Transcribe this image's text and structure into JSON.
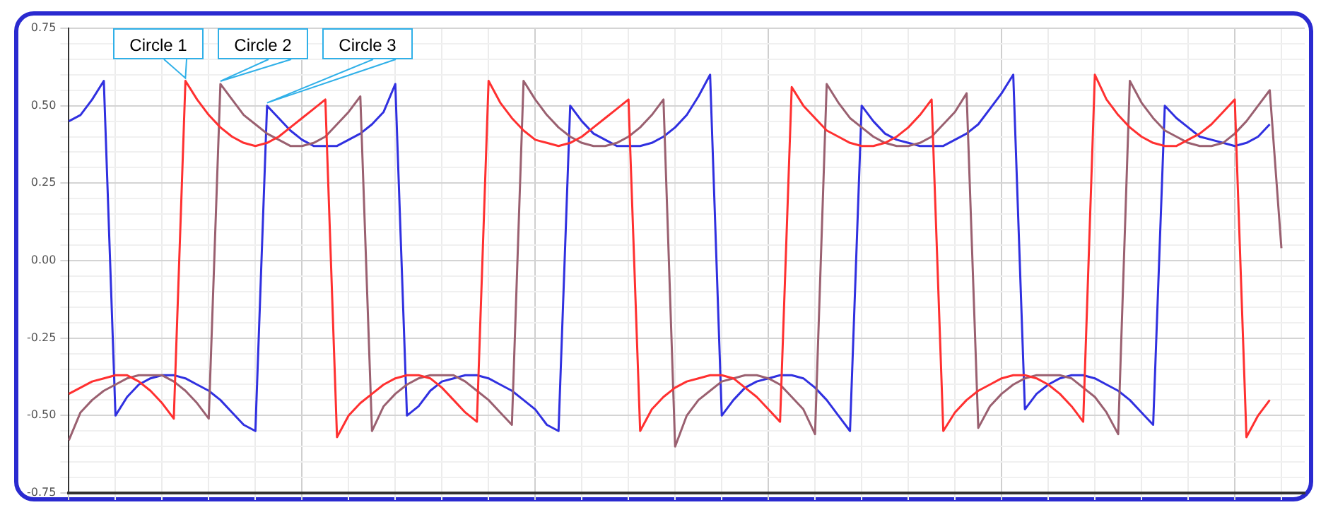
{
  "chart_data": {
    "type": "line",
    "categories": [
      null,
      null,
      null,
      null,
      null,
      null,
      null,
      null,
      null,
      null,
      null,
      null,
      null,
      null,
      null,
      null,
      null,
      null,
      null,
      null,
      null,
      null,
      null,
      null,
      null,
      null,
      null,
      null,
      null,
      null,
      null,
      null,
      null,
      null,
      null,
      null,
      null,
      null,
      null,
      null,
      null,
      null,
      null,
      null,
      null,
      null,
      null,
      null,
      null,
      null,
      null,
      null,
      null,
      null,
      null,
      null,
      null,
      null,
      null,
      null,
      null,
      null,
      null,
      null,
      null,
      null,
      null,
      null,
      null,
      null,
      null,
      null,
      null,
      null,
      null,
      null,
      null,
      null,
      null,
      null,
      null,
      null,
      null,
      null,
      null,
      null,
      null,
      null,
      null,
      null,
      null,
      null,
      null,
      null,
      null,
      null,
      null,
      null,
      null,
      null,
      null,
      null,
      null,
      null,
      null,
      null,
      null
    ],
    "series": [
      {
        "name": "Circle 1",
        "color": "#ff3030",
        "values": [
          -0.43,
          -0.41,
          -0.39,
          -0.38,
          -0.37,
          -0.37,
          -0.39,
          -0.42,
          -0.46,
          -0.51,
          0.58,
          0.52,
          0.47,
          0.43,
          0.4,
          0.38,
          0.37,
          0.38,
          0.4,
          0.43,
          0.46,
          0.49,
          0.52,
          -0.57,
          -0.5,
          -0.46,
          -0.43,
          -0.4,
          -0.38,
          -0.37,
          -0.37,
          -0.38,
          -0.41,
          -0.45,
          -0.49,
          -0.52,
          0.58,
          0.51,
          0.46,
          0.42,
          0.39,
          0.38,
          0.37,
          0.38,
          0.4,
          0.43,
          0.46,
          0.49,
          0.52,
          -0.55,
          -0.48,
          -0.44,
          -0.41,
          -0.39,
          -0.38,
          -0.37,
          -0.37,
          -0.38,
          -0.41,
          -0.44,
          -0.48,
          -0.52,
          0.56,
          0.5,
          0.46,
          0.42,
          0.4,
          0.38,
          0.37,
          0.37,
          0.38,
          0.4,
          0.43,
          0.47,
          0.52,
          -0.55,
          -0.49,
          -0.45,
          -0.42,
          -0.4,
          -0.38,
          -0.37,
          -0.37,
          -0.38,
          -0.4,
          -0.43,
          -0.47,
          -0.52,
          0.6,
          0.52,
          0.47,
          0.43,
          0.4,
          0.38,
          0.37,
          0.37,
          0.39,
          0.41,
          0.44,
          0.48,
          0.52,
          -0.57,
          -0.5,
          -0.45,
          null,
          null,
          null
        ]
      },
      {
        "name": "Circle 2",
        "color": "#9a6070",
        "values": [
          -0.58,
          -0.49,
          -0.45,
          -0.42,
          -0.4,
          -0.38,
          -0.37,
          -0.37,
          -0.37,
          -0.39,
          -0.42,
          -0.46,
          -0.51,
          0.57,
          0.52,
          0.47,
          0.44,
          0.41,
          0.39,
          0.37,
          0.37,
          0.38,
          0.4,
          0.44,
          0.48,
          0.53,
          -0.55,
          -0.47,
          -0.43,
          -0.4,
          -0.38,
          -0.37,
          -0.37,
          -0.37,
          -0.39,
          -0.42,
          -0.45,
          -0.49,
          -0.53,
          0.58,
          0.52,
          0.47,
          0.43,
          0.4,
          0.38,
          0.37,
          0.37,
          0.38,
          0.4,
          0.43,
          0.47,
          0.52,
          -0.6,
          -0.5,
          -0.45,
          -0.42,
          -0.39,
          -0.38,
          -0.37,
          -0.37,
          -0.38,
          -0.4,
          -0.44,
          -0.48,
          -0.56,
          0.57,
          0.51,
          0.46,
          0.43,
          0.4,
          0.38,
          0.37,
          0.37,
          0.38,
          0.4,
          0.44,
          0.48,
          0.54,
          -0.54,
          -0.47,
          -0.43,
          -0.4,
          -0.38,
          -0.37,
          -0.37,
          -0.37,
          -0.38,
          -0.41,
          -0.44,
          -0.49,
          -0.56,
          0.58,
          0.51,
          0.46,
          0.42,
          0.4,
          0.38,
          0.37,
          0.37,
          0.38,
          0.41,
          0.45,
          0.5,
          0.55,
          0.04,
          null,
          null
        ]
      },
      {
        "name": "Circle 3",
        "color": "#3030e0",
        "values": [
          0.45,
          0.47,
          0.52,
          0.58,
          -0.5,
          -0.44,
          -0.4,
          -0.38,
          -0.37,
          -0.37,
          -0.38,
          -0.4,
          -0.42,
          -0.45,
          -0.49,
          -0.53,
          -0.55,
          0.5,
          0.46,
          0.42,
          0.39,
          0.37,
          0.37,
          0.37,
          0.39,
          0.41,
          0.44,
          0.48,
          0.57,
          -0.5,
          -0.47,
          -0.42,
          -0.39,
          -0.38,
          -0.37,
          -0.37,
          -0.38,
          -0.4,
          -0.42,
          -0.45,
          -0.48,
          -0.53,
          -0.55,
          0.5,
          0.45,
          0.41,
          0.39,
          0.37,
          0.37,
          0.37,
          0.38,
          0.4,
          0.43,
          0.47,
          0.53,
          0.6,
          -0.5,
          -0.45,
          -0.41,
          -0.39,
          -0.38,
          -0.37,
          -0.37,
          -0.38,
          -0.41,
          -0.45,
          -0.5,
          -0.55,
          0.5,
          0.45,
          0.41,
          0.39,
          0.38,
          0.37,
          0.37,
          0.37,
          0.39,
          0.41,
          0.44,
          0.49,
          0.54,
          0.6,
          -0.48,
          -0.43,
          -0.4,
          -0.38,
          -0.37,
          -0.37,
          -0.38,
          -0.4,
          -0.42,
          -0.45,
          -0.49,
          -0.53,
          0.5,
          0.46,
          0.43,
          0.4,
          0.39,
          0.38,
          0.37,
          0.38,
          0.4,
          0.44,
          null,
          null,
          null
        ]
      }
    ],
    "ylim": [
      -0.75,
      0.75
    ],
    "yticks": [
      {
        "value": -0.75,
        "label": "-0.75"
      },
      {
        "value": -0.7,
        "label": null
      },
      {
        "value": -0.65,
        "label": null
      },
      {
        "value": -0.6,
        "label": null
      },
      {
        "value": -0.55,
        "label": null
      },
      {
        "value": -0.5,
        "label": "-0.50"
      },
      {
        "value": -0.45,
        "label": null
      },
      {
        "value": -0.4,
        "label": null
      },
      {
        "value": -0.35,
        "label": null
      },
      {
        "value": -0.3,
        "label": null
      },
      {
        "value": -0.25,
        "label": "-0.25"
      },
      {
        "value": -0.2,
        "label": null
      },
      {
        "value": -0.15,
        "label": null
      },
      {
        "value": -0.1,
        "label": null
      },
      {
        "value": -0.05,
        "label": null
      },
      {
        "value": 0,
        "label": "0.00"
      },
      {
        "value": 0.05,
        "label": null
      },
      {
        "value": 0.1,
        "label": null
      },
      {
        "value": 0.15,
        "label": null
      },
      {
        "value": 0.2,
        "label": null
      },
      {
        "value": 0.25,
        "label": "0.25"
      },
      {
        "value": 0.3,
        "label": null
      },
      {
        "value": 0.35,
        "label": null
      },
      {
        "value": 0.4,
        "label": null
      },
      {
        "value": 0.45,
        "label": null
      },
      {
        "value": 0.5,
        "label": "0.50"
      },
      {
        "value": 0.55,
        "label": null
      },
      {
        "value": 0.6,
        "label": null
      },
      {
        "value": 0.65,
        "label": null
      },
      {
        "value": 0.7,
        "label": null
      },
      {
        "value": 0.75,
        "label": "0.75"
      }
    ],
    "grid": true,
    "tick_labels": "y"
  }
}
